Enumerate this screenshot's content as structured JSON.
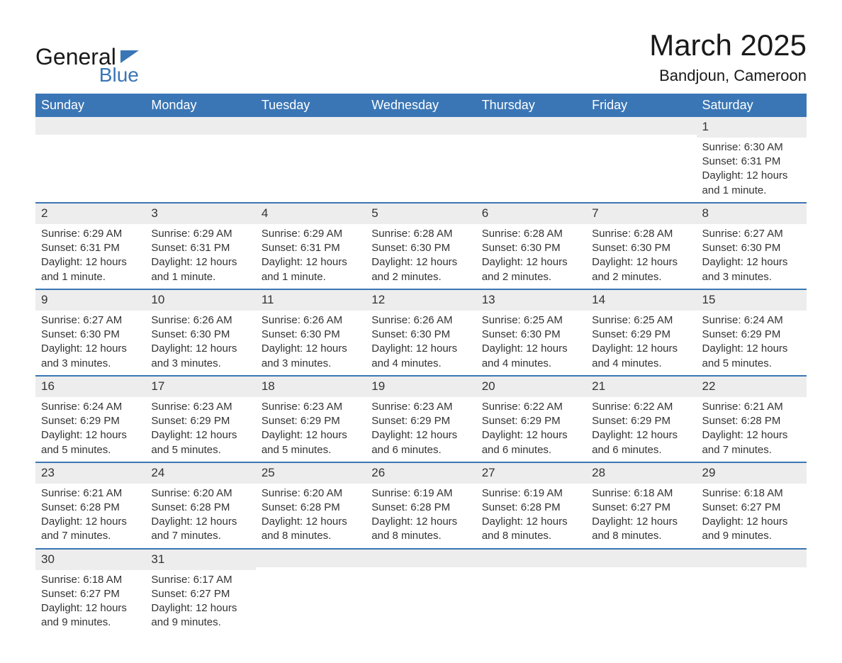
{
  "logo": {
    "text1": "General",
    "text2": "Blue",
    "flag_color": "#3a76b5"
  },
  "title": "March 2025",
  "location": "Bandjoun, Cameroon",
  "colors": {
    "header_bg": "#3a76b5",
    "header_text": "#ffffff",
    "daynum_bg": "#ededed",
    "row_border": "#3a76b5",
    "body_text": "#333333",
    "background": "#ffffff"
  },
  "font": {
    "family": "Arial",
    "day_header_size_pt": 14,
    "title_size_pt": 32,
    "location_size_pt": 17,
    "cell_size_pt": 11
  },
  "day_headers": [
    "Sunday",
    "Monday",
    "Tuesday",
    "Wednesday",
    "Thursday",
    "Friday",
    "Saturday"
  ],
  "weeks": [
    [
      {
        "n": "",
        "sr": "",
        "ss": "",
        "dl": ""
      },
      {
        "n": "",
        "sr": "",
        "ss": "",
        "dl": ""
      },
      {
        "n": "",
        "sr": "",
        "ss": "",
        "dl": ""
      },
      {
        "n": "",
        "sr": "",
        "ss": "",
        "dl": ""
      },
      {
        "n": "",
        "sr": "",
        "ss": "",
        "dl": ""
      },
      {
        "n": "",
        "sr": "",
        "ss": "",
        "dl": ""
      },
      {
        "n": "1",
        "sr": "Sunrise: 6:30 AM",
        "ss": "Sunset: 6:31 PM",
        "dl": "Daylight: 12 hours and 1 minute."
      }
    ],
    [
      {
        "n": "2",
        "sr": "Sunrise: 6:29 AM",
        "ss": "Sunset: 6:31 PM",
        "dl": "Daylight: 12 hours and 1 minute."
      },
      {
        "n": "3",
        "sr": "Sunrise: 6:29 AM",
        "ss": "Sunset: 6:31 PM",
        "dl": "Daylight: 12 hours and 1 minute."
      },
      {
        "n": "4",
        "sr": "Sunrise: 6:29 AM",
        "ss": "Sunset: 6:31 PM",
        "dl": "Daylight: 12 hours and 1 minute."
      },
      {
        "n": "5",
        "sr": "Sunrise: 6:28 AM",
        "ss": "Sunset: 6:30 PM",
        "dl": "Daylight: 12 hours and 2 minutes."
      },
      {
        "n": "6",
        "sr": "Sunrise: 6:28 AM",
        "ss": "Sunset: 6:30 PM",
        "dl": "Daylight: 12 hours and 2 minutes."
      },
      {
        "n": "7",
        "sr": "Sunrise: 6:28 AM",
        "ss": "Sunset: 6:30 PM",
        "dl": "Daylight: 12 hours and 2 minutes."
      },
      {
        "n": "8",
        "sr": "Sunrise: 6:27 AM",
        "ss": "Sunset: 6:30 PM",
        "dl": "Daylight: 12 hours and 3 minutes."
      }
    ],
    [
      {
        "n": "9",
        "sr": "Sunrise: 6:27 AM",
        "ss": "Sunset: 6:30 PM",
        "dl": "Daylight: 12 hours and 3 minutes."
      },
      {
        "n": "10",
        "sr": "Sunrise: 6:26 AM",
        "ss": "Sunset: 6:30 PM",
        "dl": "Daylight: 12 hours and 3 minutes."
      },
      {
        "n": "11",
        "sr": "Sunrise: 6:26 AM",
        "ss": "Sunset: 6:30 PM",
        "dl": "Daylight: 12 hours and 3 minutes."
      },
      {
        "n": "12",
        "sr": "Sunrise: 6:26 AM",
        "ss": "Sunset: 6:30 PM",
        "dl": "Daylight: 12 hours and 4 minutes."
      },
      {
        "n": "13",
        "sr": "Sunrise: 6:25 AM",
        "ss": "Sunset: 6:30 PM",
        "dl": "Daylight: 12 hours and 4 minutes."
      },
      {
        "n": "14",
        "sr": "Sunrise: 6:25 AM",
        "ss": "Sunset: 6:29 PM",
        "dl": "Daylight: 12 hours and 4 minutes."
      },
      {
        "n": "15",
        "sr": "Sunrise: 6:24 AM",
        "ss": "Sunset: 6:29 PM",
        "dl": "Daylight: 12 hours and 5 minutes."
      }
    ],
    [
      {
        "n": "16",
        "sr": "Sunrise: 6:24 AM",
        "ss": "Sunset: 6:29 PM",
        "dl": "Daylight: 12 hours and 5 minutes."
      },
      {
        "n": "17",
        "sr": "Sunrise: 6:23 AM",
        "ss": "Sunset: 6:29 PM",
        "dl": "Daylight: 12 hours and 5 minutes."
      },
      {
        "n": "18",
        "sr": "Sunrise: 6:23 AM",
        "ss": "Sunset: 6:29 PM",
        "dl": "Daylight: 12 hours and 5 minutes."
      },
      {
        "n": "19",
        "sr": "Sunrise: 6:23 AM",
        "ss": "Sunset: 6:29 PM",
        "dl": "Daylight: 12 hours and 6 minutes."
      },
      {
        "n": "20",
        "sr": "Sunrise: 6:22 AM",
        "ss": "Sunset: 6:29 PM",
        "dl": "Daylight: 12 hours and 6 minutes."
      },
      {
        "n": "21",
        "sr": "Sunrise: 6:22 AM",
        "ss": "Sunset: 6:29 PM",
        "dl": "Daylight: 12 hours and 6 minutes."
      },
      {
        "n": "22",
        "sr": "Sunrise: 6:21 AM",
        "ss": "Sunset: 6:28 PM",
        "dl": "Daylight: 12 hours and 7 minutes."
      }
    ],
    [
      {
        "n": "23",
        "sr": "Sunrise: 6:21 AM",
        "ss": "Sunset: 6:28 PM",
        "dl": "Daylight: 12 hours and 7 minutes."
      },
      {
        "n": "24",
        "sr": "Sunrise: 6:20 AM",
        "ss": "Sunset: 6:28 PM",
        "dl": "Daylight: 12 hours and 7 minutes."
      },
      {
        "n": "25",
        "sr": "Sunrise: 6:20 AM",
        "ss": "Sunset: 6:28 PM",
        "dl": "Daylight: 12 hours and 8 minutes."
      },
      {
        "n": "26",
        "sr": "Sunrise: 6:19 AM",
        "ss": "Sunset: 6:28 PM",
        "dl": "Daylight: 12 hours and 8 minutes."
      },
      {
        "n": "27",
        "sr": "Sunrise: 6:19 AM",
        "ss": "Sunset: 6:28 PM",
        "dl": "Daylight: 12 hours and 8 minutes."
      },
      {
        "n": "28",
        "sr": "Sunrise: 6:18 AM",
        "ss": "Sunset: 6:27 PM",
        "dl": "Daylight: 12 hours and 8 minutes."
      },
      {
        "n": "29",
        "sr": "Sunrise: 6:18 AM",
        "ss": "Sunset: 6:27 PM",
        "dl": "Daylight: 12 hours and 9 minutes."
      }
    ],
    [
      {
        "n": "30",
        "sr": "Sunrise: 6:18 AM",
        "ss": "Sunset: 6:27 PM",
        "dl": "Daylight: 12 hours and 9 minutes."
      },
      {
        "n": "31",
        "sr": "Sunrise: 6:17 AM",
        "ss": "Sunset: 6:27 PM",
        "dl": "Daylight: 12 hours and 9 minutes."
      },
      {
        "n": "",
        "sr": "",
        "ss": "",
        "dl": ""
      },
      {
        "n": "",
        "sr": "",
        "ss": "",
        "dl": ""
      },
      {
        "n": "",
        "sr": "",
        "ss": "",
        "dl": ""
      },
      {
        "n": "",
        "sr": "",
        "ss": "",
        "dl": ""
      },
      {
        "n": "",
        "sr": "",
        "ss": "",
        "dl": ""
      }
    ]
  ]
}
